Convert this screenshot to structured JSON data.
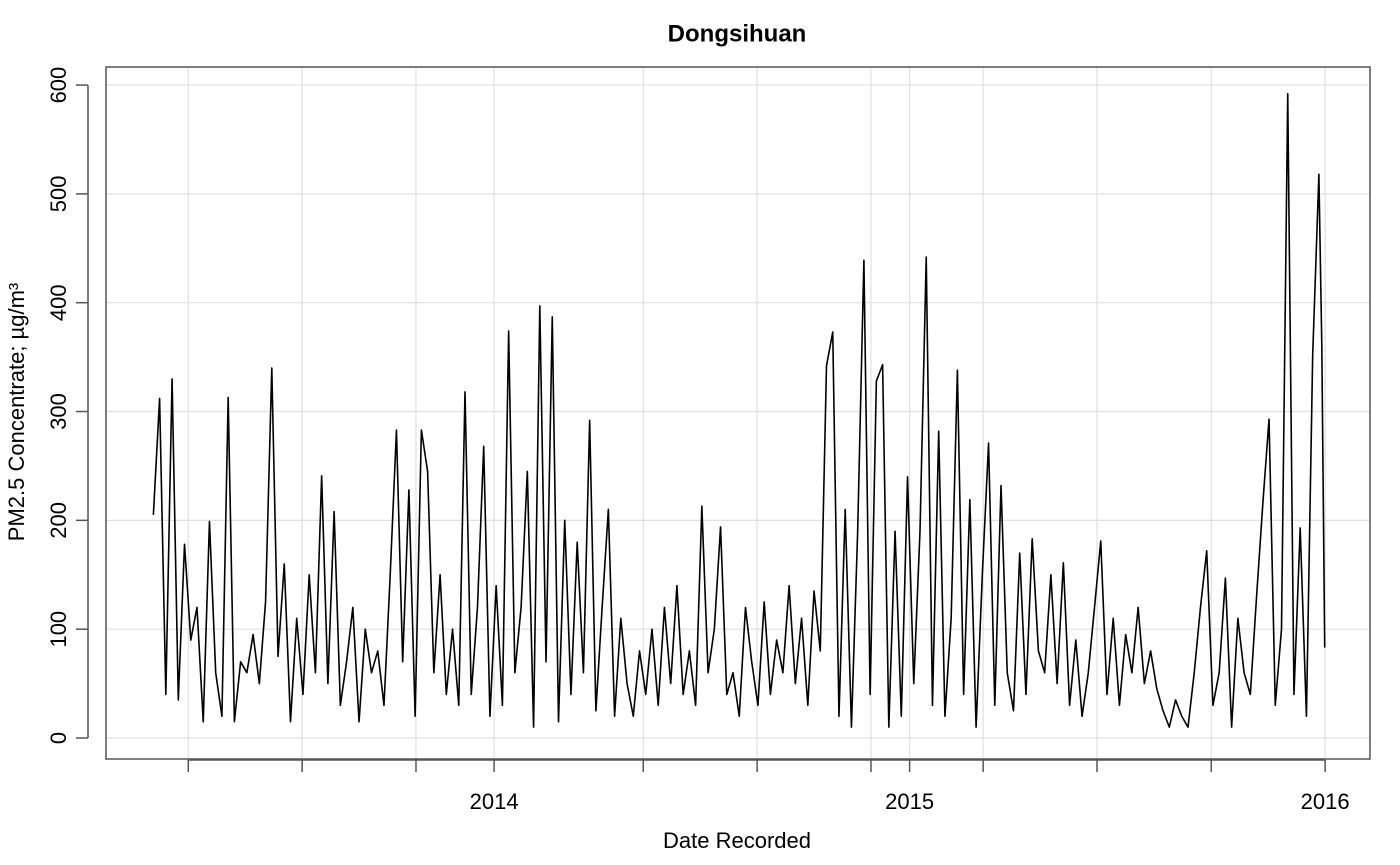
{
  "chart_data": {
    "type": "line",
    "title": "Dongsihuan",
    "x_label": "Date Recorded",
    "y_label": "PM2.5 Concentrate; µg/m³",
    "color": "#000000",
    "grid": true,
    "xlim": [
      2013.066,
      2016.108
    ],
    "ylim": [
      -19.3,
      616.6
    ],
    "xticks": [
      2014,
      2015,
      2016
    ],
    "xminorticks": [
      2013.264,
      2013.538,
      2013.812,
      2014.359,
      2014.633,
      2014.907,
      2015.177,
      2015.451,
      2015.726
    ],
    "yticks": [
      0,
      100,
      200,
      300,
      400,
      500,
      600
    ],
    "x": [
      2013.18,
      2013.195,
      2013.21,
      2013.225,
      2013.24,
      2013.255,
      2013.27,
      2013.285,
      2013.3,
      2013.315,
      2013.33,
      2013.345,
      2013.36,
      2013.375,
      2013.39,
      2013.405,
      2013.42,
      2013.435,
      2013.45,
      2013.465,
      2013.48,
      2013.495,
      2013.51,
      2013.525,
      2013.54,
      2013.555,
      2013.57,
      2013.585,
      2013.6,
      2013.615,
      2013.63,
      2013.645,
      2013.66,
      2013.675,
      2013.69,
      2013.705,
      2013.72,
      2013.735,
      2013.75,
      2013.765,
      2013.78,
      2013.795,
      2013.81,
      2013.825,
      2013.84,
      2013.855,
      2013.87,
      2013.885,
      2013.9,
      2013.915,
      2013.93,
      2013.945,
      2013.96,
      2013.975,
      2013.99,
      2014.005,
      2014.02,
      2014.035,
      2014.05,
      2014.065,
      2014.08,
      2014.095,
      2014.11,
      2014.125,
      2014.14,
      2014.155,
      2014.17,
      2014.185,
      2014.2,
      2014.215,
      2014.23,
      2014.245,
      2014.26,
      2014.275,
      2014.29,
      2014.305,
      2014.32,
      2014.335,
      2014.35,
      2014.365,
      2014.38,
      2014.395,
      2014.41,
      2014.425,
      2014.44,
      2014.455,
      2014.47,
      2014.485,
      2014.5,
      2014.515,
      2014.53,
      2014.545,
      2014.56,
      2014.575,
      2014.59,
      2014.605,
      2014.62,
      2014.635,
      2014.65,
      2014.665,
      2014.68,
      2014.695,
      2014.71,
      2014.725,
      2014.74,
      2014.755,
      2014.77,
      2014.785,
      2014.8,
      2014.815,
      2014.83,
      2014.845,
      2014.86,
      2014.875,
      2014.89,
      2014.905,
      2014.92,
      2014.935,
      2014.95,
      2014.965,
      2014.98,
      2014.995,
      2015.01,
      2015.025,
      2015.04,
      2015.055,
      2015.07,
      2015.085,
      2015.1,
      2015.115,
      2015.13,
      2015.145,
      2015.16,
      2015.175,
      2015.19,
      2015.205,
      2015.22,
      2015.235,
      2015.25,
      2015.265,
      2015.28,
      2015.295,
      2015.31,
      2015.325,
      2015.34,
      2015.355,
      2015.37,
      2015.385,
      2015.4,
      2015.415,
      2015.43,
      2015.445,
      2015.46,
      2015.475,
      2015.49,
      2015.505,
      2015.52,
      2015.535,
      2015.55,
      2015.565,
      2015.58,
      2015.595,
      2015.61,
      2015.625,
      2015.64,
      2015.655,
      2015.67,
      2015.685,
      2015.7,
      2015.715,
      2015.73,
      2015.745,
      2015.76,
      2015.775,
      2015.79,
      2015.805,
      2015.82,
      2015.835,
      2015.85,
      2015.865,
      2015.88,
      2015.895,
      2015.91,
      2015.925,
      2015.94,
      2015.955,
      2015.97,
      2015.985,
      2015.992,
      2015.999
    ],
    "values": [
      205,
      312,
      40,
      330,
      35,
      178,
      90,
      120,
      15,
      199,
      60,
      20,
      313,
      15,
      70,
      60,
      95,
      50,
      125,
      340,
      75,
      160,
      15,
      110,
      40,
      150,
      60,
      241,
      50,
      208,
      30,
      70,
      120,
      15,
      100,
      60,
      80,
      30,
      150,
      283,
      70,
      228,
      20,
      283,
      245,
      60,
      150,
      40,
      100,
      30,
      318,
      40,
      120,
      268,
      20,
      140,
      30,
      374,
      60,
      120,
      245,
      10,
      397,
      70,
      387,
      15,
      200,
      40,
      180,
      60,
      292,
      25,
      120,
      210,
      20,
      110,
      50,
      20,
      80,
      40,
      100,
      30,
      120,
      50,
      140,
      40,
      80,
      30,
      213,
      60,
      100,
      194,
      40,
      60,
      20,
      120,
      70,
      30,
      125,
      40,
      90,
      60,
      140,
      50,
      110,
      30,
      135,
      80,
      342,
      373,
      20,
      210,
      10,
      190,
      439,
      40,
      328,
      343,
      10,
      190,
      20,
      240,
      50,
      190,
      442,
      30,
      282,
      20,
      110,
      338,
      40,
      219,
      10,
      150,
      271,
      30,
      232,
      60,
      25,
      170,
      40,
      183,
      80,
      60,
      150,
      50,
      161,
      30,
      90,
      20,
      60,
      120,
      181,
      40,
      110,
      30,
      95,
      60,
      120,
      50,
      80,
      45,
      25,
      10,
      35,
      20,
      10,
      60,
      120,
      172,
      30,
      60,
      147,
      10,
      110,
      60,
      40,
      130,
      215,
      293,
      30,
      100,
      592,
      40,
      193,
      20,
      351,
      518,
      361,
      83
    ]
  }
}
